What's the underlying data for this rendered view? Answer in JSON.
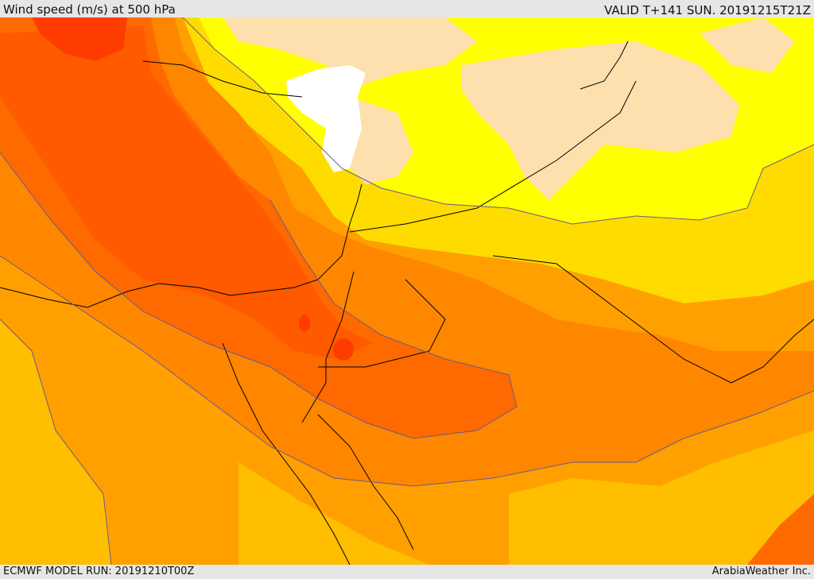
{
  "header": {
    "title": "Wind speed (m/s) at 500 hPa",
    "valid_time": "VALID T+141 SUN. 20191215T21Z"
  },
  "footer": {
    "model_run": "ECMWF MODEL RUN: 20191210T00Z",
    "credit": "ArabiaWeather Inc."
  },
  "map": {
    "variable": "wind-speed-500hpa",
    "palette": {
      "calm_white": "#ffffff",
      "light_tan": "#fde0ad",
      "yellow": "#ffff00",
      "gold": "#ffdc00",
      "amber": "#ffbe00",
      "orange_light": "#ffa000",
      "orange": "#ff8700",
      "orange_dark": "#ff6a00",
      "red_orange": "#ff5a00",
      "red": "#ff3c00"
    },
    "contour_color": "#6a5a8c",
    "border_color": "#000000"
  }
}
